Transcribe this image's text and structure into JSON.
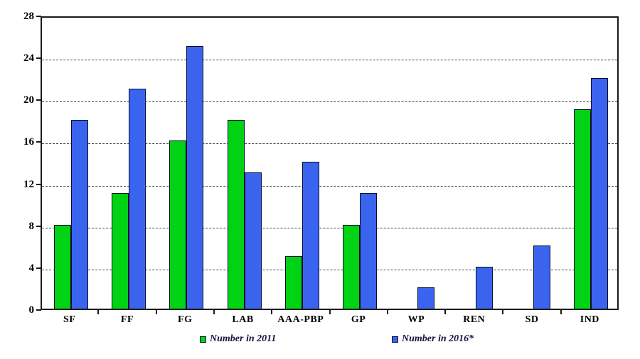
{
  "chart": {
    "background": "#ffffff",
    "axis_color": "#1a1a1a",
    "gridline_color": "#404040",
    "bar_border_color": "#0b0b2b",
    "tick_label_color": "#000000",
    "legend_text_color": "#15153f"
  },
  "chart_data": {
    "type": "bar",
    "title": "",
    "xlabel": "",
    "ylabel": "",
    "categories": [
      "SF",
      "FF",
      "FG",
      "LAB",
      "AAA-PBP",
      "GP",
      "WP",
      "REN",
      "SD",
      "IND"
    ],
    "series": [
      {
        "name": "Number in 2011",
        "color": "#00D214",
        "values": [
          8,
          11,
          16,
          18,
          5,
          8,
          0,
          0,
          0,
          19
        ]
      },
      {
        "name": "Number in 2016*",
        "color": "#3A64ED",
        "values": [
          18,
          21,
          25,
          13,
          14,
          11,
          2,
          4,
          6,
          22
        ]
      }
    ],
    "ylim": [
      0,
      28
    ],
    "yticks": [
      0,
      4,
      8,
      12,
      16,
      20,
      24,
      28
    ],
    "grid": "horizontal-dashed",
    "legend_position": "bottom"
  }
}
